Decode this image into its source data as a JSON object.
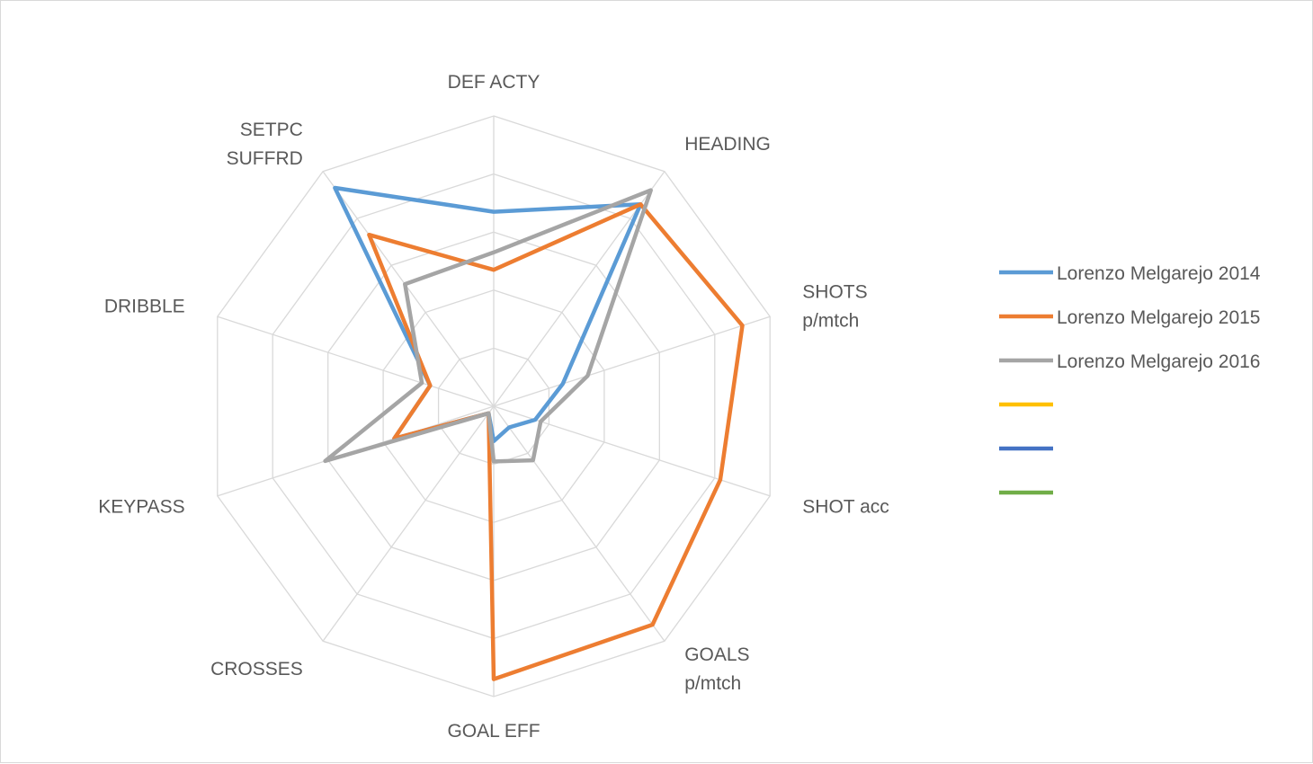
{
  "chart_data": {
    "type": "radar",
    "title": "",
    "axes": [
      "DEF ACTY",
      "HEADING",
      "SHOTS p/mtch",
      "SHOT acc",
      "GOALS p/mtch",
      "GOAL EFF",
      "CROSSES",
      "KEYPASS",
      "DRIBBLE",
      "SETPC SUFFRD"
    ],
    "axis_label_lines": [
      [
        "DEF ACTY"
      ],
      [
        "HEADING"
      ],
      [
        "SHOTS",
        "p/mtch"
      ],
      [
        "SHOT acc"
      ],
      [
        "GOALS",
        "p/mtch"
      ],
      [
        "GOAL EFF"
      ],
      [
        "CROSSES"
      ],
      [
        "KEYPASS"
      ],
      [
        "DRIBBLE"
      ],
      [
        "SETPC",
        "SUFFRD"
      ]
    ],
    "rlim": [
      0,
      10
    ],
    "rings": 5,
    "grid": true,
    "legend_position": "right",
    "series": [
      {
        "name": "Lorenzo Melgarejo 2014",
        "color": "#5b9bd5",
        "values": [
          6.7,
          8.6,
          2.5,
          1.5,
          0.9,
          1.2,
          0.3,
          3.6,
          2.3,
          9.3
        ]
      },
      {
        "name": "Lorenzo Melgarejo 2015",
        "color": "#ed7d31",
        "values": [
          4.7,
          8.6,
          9.0,
          8.2,
          9.3,
          9.4,
          0.3,
          3.6,
          2.3,
          7.3
        ]
      },
      {
        "name": "Lorenzo Melgarejo 2016",
        "color": "#a5a5a5",
        "values": [
          5.3,
          9.2,
          3.4,
          1.7,
          2.3,
          1.9,
          0.3,
          6.1,
          2.6,
          5.2
        ]
      },
      {
        "name": "",
        "color": "#ffc000",
        "values": []
      },
      {
        "name": "",
        "color": "#4472c4",
        "values": []
      },
      {
        "name": "",
        "color": "#70ad47",
        "values": []
      }
    ]
  }
}
